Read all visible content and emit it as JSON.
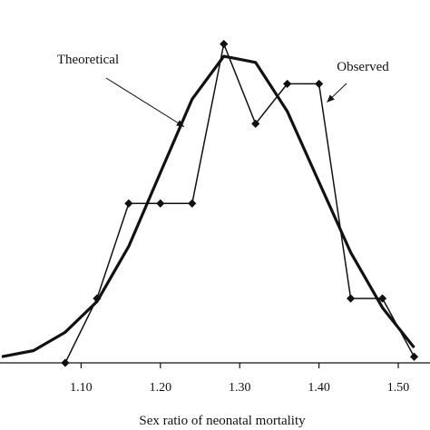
{
  "chart_data": {
    "type": "line",
    "title": "",
    "xlabel": "Sex ratio of neonatal mortality",
    "ylabel": "",
    "x_ticks": [
      "1.10",
      "1.20",
      "1.30",
      "1.40",
      "1.50"
    ],
    "xlim": [
      1.0,
      1.54
    ],
    "ylim": [
      0,
      100
    ],
    "grid": false,
    "legend": "none",
    "series": [
      {
        "name": "Theoretical",
        "style": "thick-line",
        "color": "#111111",
        "x": [
          1.0,
          1.04,
          1.08,
          1.12,
          1.16,
          1.2,
          1.24,
          1.28,
          1.32,
          1.36,
          1.4,
          1.44,
          1.48,
          1.52
        ],
        "y": [
          2,
          4,
          10,
          20,
          38,
          62,
          86,
          100,
          98,
          82,
          59,
          36,
          18,
          5
        ]
      },
      {
        "name": "Observed",
        "style": "line-with-diamond-markers",
        "color": "#111111",
        "x": [
          1.08,
          1.12,
          1.16,
          1.2,
          1.24,
          1.28,
          1.32,
          1.36,
          1.4,
          1.44,
          1.48,
          1.52
        ],
        "y": [
          0,
          21,
          52,
          52,
          52,
          104,
          78,
          91,
          91,
          21,
          21,
          2
        ]
      }
    ],
    "annotations": [
      {
        "text": "Theoretical",
        "target_series": "Theoretical",
        "point": [
          1.23,
          77
        ]
      },
      {
        "text": "Observed",
        "target_series": "Observed",
        "point": [
          1.41,
          85
        ]
      }
    ]
  }
}
